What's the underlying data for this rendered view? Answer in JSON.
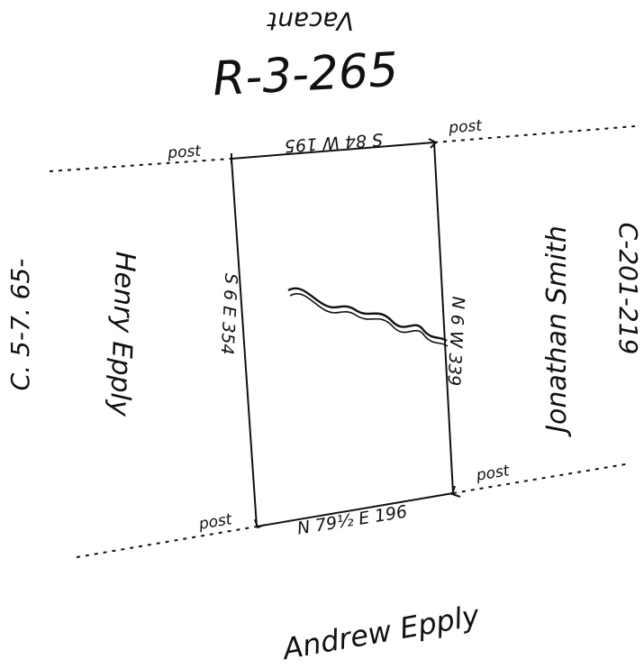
{
  "labels": {
    "top_vacant": "Vacant",
    "reference_code": "R-3-265",
    "left_reference": "C. 5-7. 65-",
    "right_reference": "C-201-219",
    "bottom_owner": "Andrew Epply",
    "left_owner": "Henry Epply",
    "right_owner": "Jonathan Smith"
  },
  "boundaries": {
    "north": "S 84 W 195",
    "west": "S 6 E 354",
    "east": "N 6 W 339",
    "south": "N 79½ E 196"
  },
  "corners": {
    "nw": "post",
    "ne": "post",
    "sw": "post",
    "se": "post"
  },
  "colors": {
    "ink": "#111111",
    "paper": "#ffffff"
  }
}
